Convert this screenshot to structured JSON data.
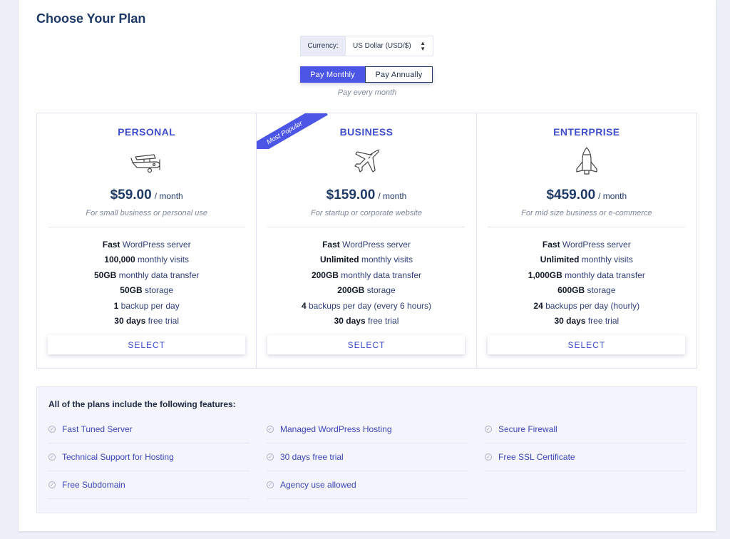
{
  "page": {
    "title": "Choose Your Plan"
  },
  "currency": {
    "label": "Currency:",
    "selected": "US Dollar (USD/$)"
  },
  "billing": {
    "monthly_label": "Pay Monthly",
    "annually_label": "Pay Annually",
    "active": "monthly",
    "note": "Pay every month"
  },
  "plans": [
    {
      "name": "PERSONAL",
      "icon": "airplane-propeller-icon",
      "price": "$59.00",
      "period": "/ month",
      "subtitle": "For small business or personal use",
      "features": [
        {
          "bold": "Fast",
          "text": " WordPress server"
        },
        {
          "bold": "100,000",
          "text": " monthly visits"
        },
        {
          "bold": "50GB",
          "text": " monthly data transfer"
        },
        {
          "bold": "50GB",
          "text": " storage"
        },
        {
          "bold": "1",
          "text": " backup per day"
        },
        {
          "bold": "30 days",
          "text": " free trial"
        }
      ],
      "button": "SELECT"
    },
    {
      "name": "BUSINESS",
      "icon": "jet-plane-icon",
      "ribbon": "Most Popular",
      "price": "$159.00",
      "period": "/ month",
      "subtitle": "For startup or corporate website",
      "features": [
        {
          "bold": "Fast",
          "text": " WordPress server"
        },
        {
          "bold": "Unlimited",
          "text": " monthly visits"
        },
        {
          "bold": "200GB",
          "text": " monthly data transfer"
        },
        {
          "bold": "200GB",
          "text": " storage"
        },
        {
          "bold": "4",
          "text": " backups per day (every 6 hours)"
        },
        {
          "bold": "30 days",
          "text": " free trial"
        }
      ],
      "button": "SELECT"
    },
    {
      "name": "ENTERPRISE",
      "icon": "space-shuttle-icon",
      "price": "$459.00",
      "period": "/ month",
      "subtitle": "For mid size business or e-commerce",
      "features": [
        {
          "bold": "Fast",
          "text": " WordPress server"
        },
        {
          "bold": "Unlimited",
          "text": " monthly visits"
        },
        {
          "bold": "1,000GB",
          "text": " monthly data transfer"
        },
        {
          "bold": "600GB",
          "text": " storage"
        },
        {
          "bold": "24",
          "text": " backups per day (hourly)"
        },
        {
          "bold": "30 days",
          "text": " free trial"
        }
      ],
      "button": "SELECT"
    }
  ],
  "included": {
    "title": "All of the plans include the following features:",
    "items": [
      "Fast Tuned Server",
      "Managed WordPress Hosting",
      "Secure Firewall",
      "Technical Support for Hosting",
      "30 days free trial",
      "Free SSL Certificate",
      "Free Subdomain",
      "Agency use allowed"
    ]
  },
  "colors": {
    "accent": "#4b56e6",
    "heading": "#1f3a66",
    "plan_name": "#3f4fce",
    "muted": "#7d879c"
  }
}
